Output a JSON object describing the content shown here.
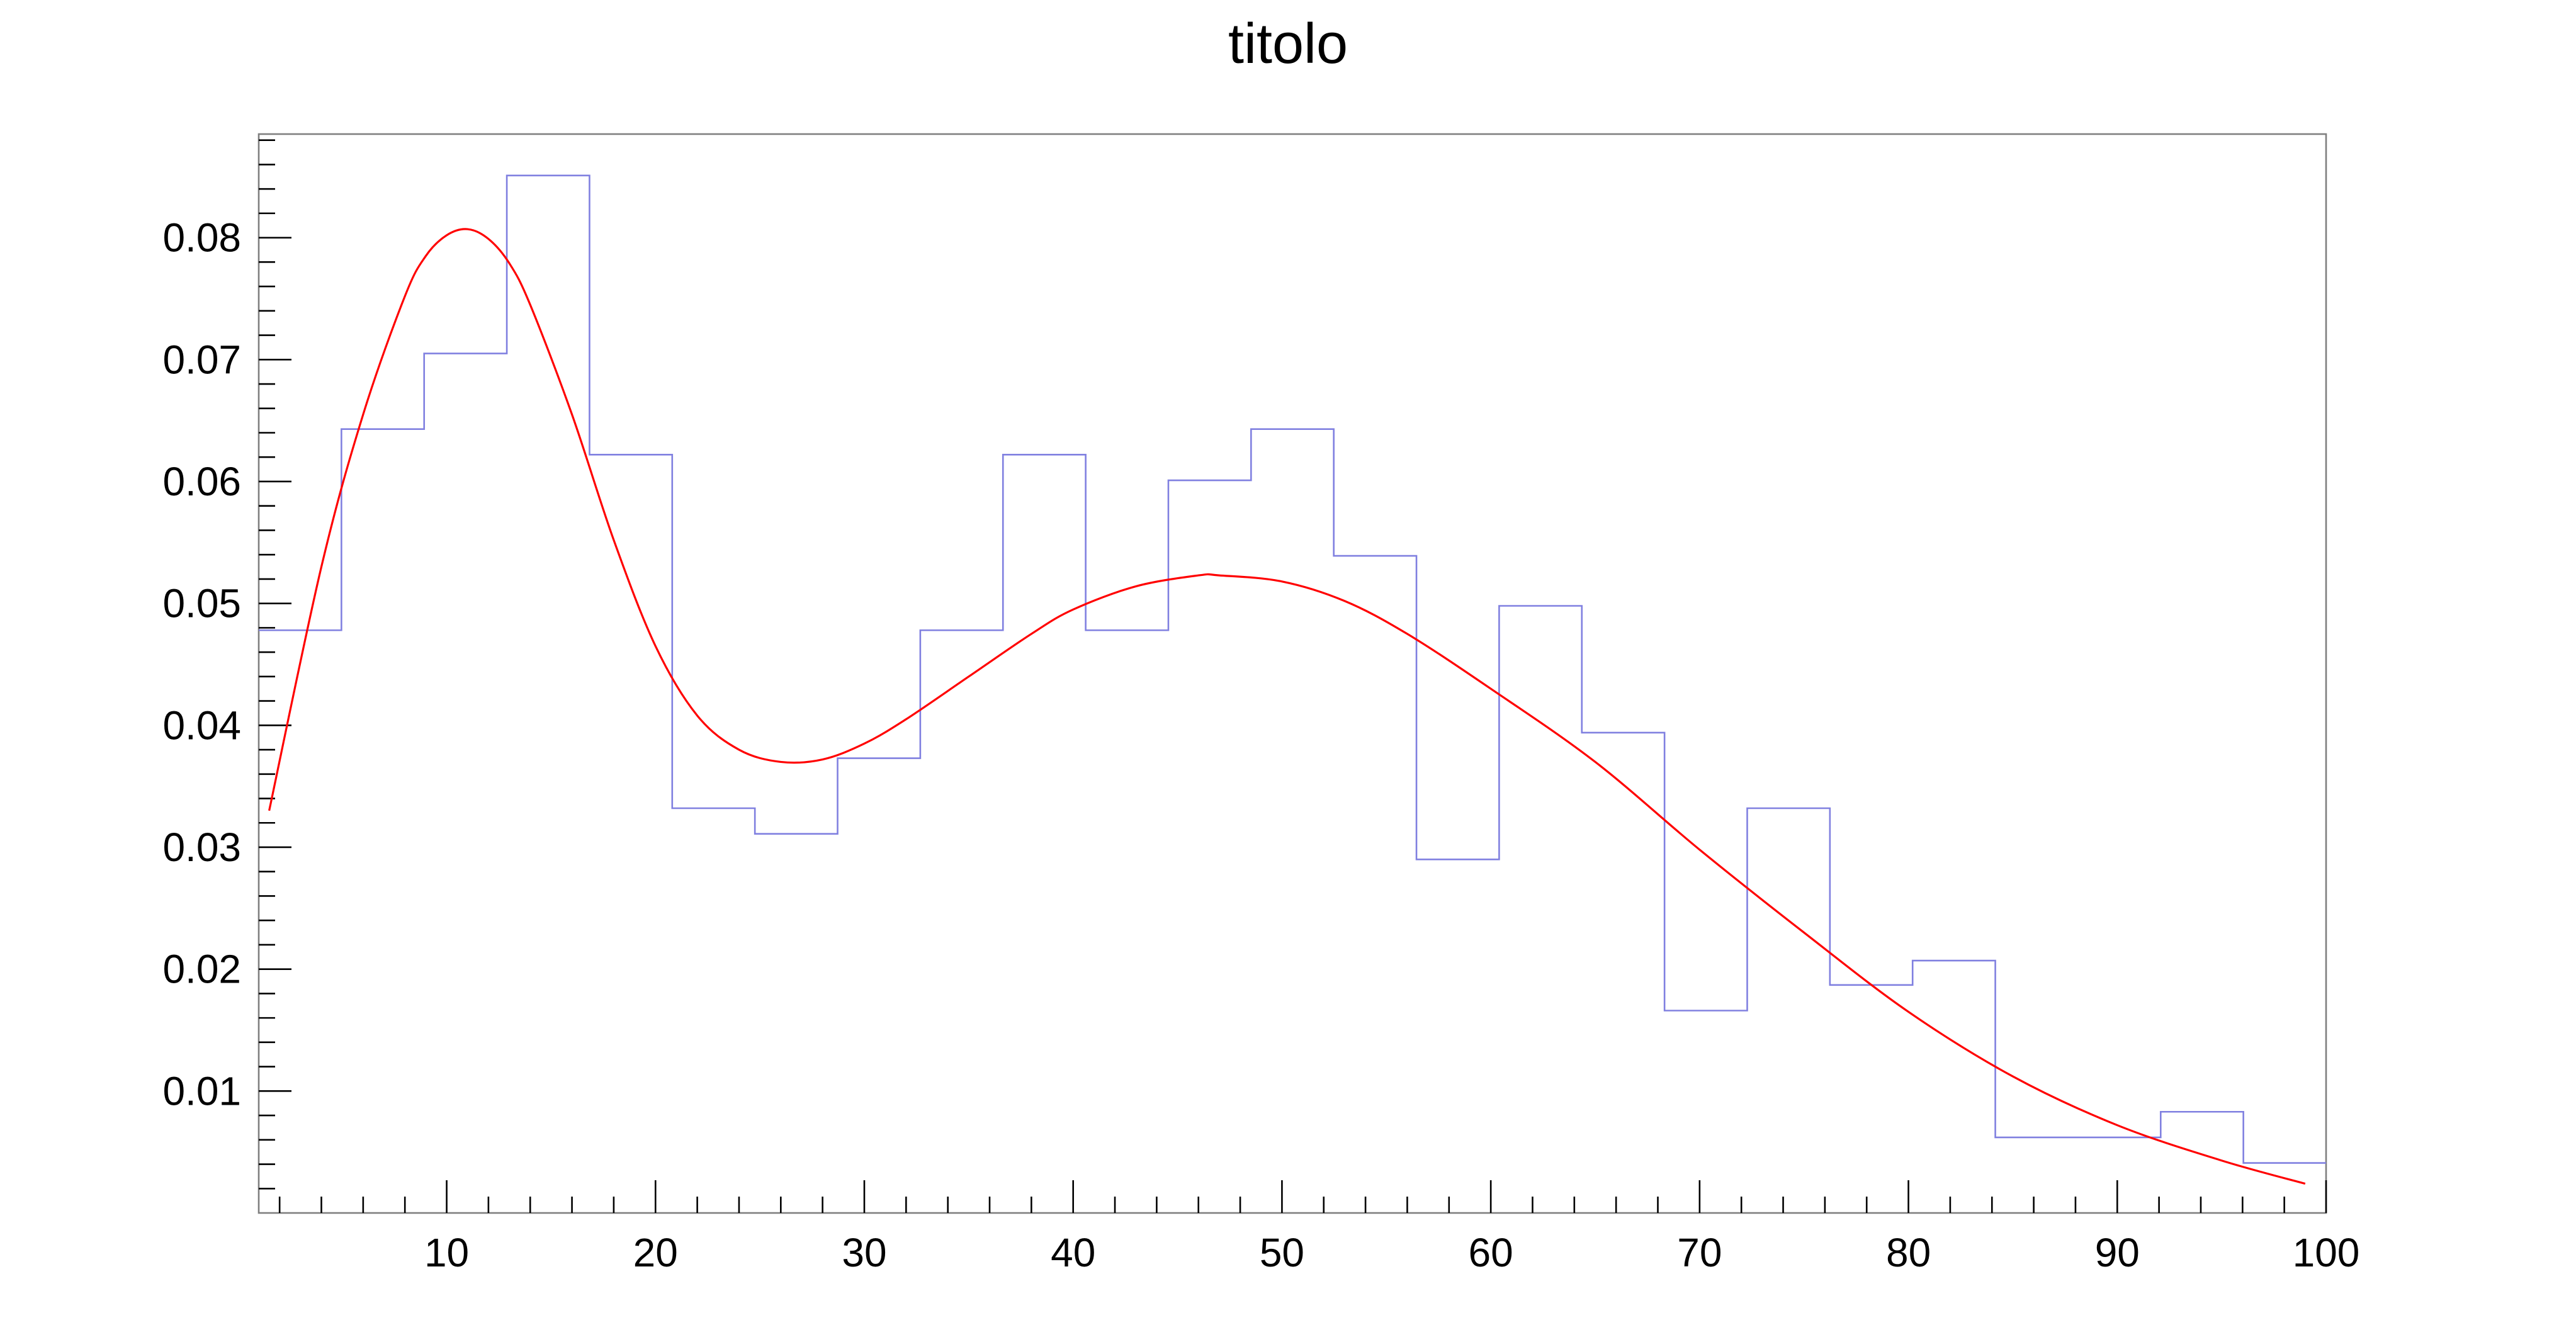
{
  "chart_data": {
    "type": "line",
    "title": "titolo",
    "xlabel": "",
    "ylabel": "",
    "xlim": [
      1,
      100
    ],
    "ylim": [
      0,
      0.0885
    ],
    "grid": false,
    "legend": false,
    "x_ticks": [
      10,
      20,
      30,
      40,
      50,
      60,
      70,
      80,
      90,
      100
    ],
    "y_ticks": [
      0.01,
      0.02,
      0.03,
      0.04,
      0.05,
      0.06,
      0.07,
      0.08
    ],
    "x_tick_labels": [
      "10",
      "20",
      "30",
      "40",
      "50",
      "60",
      "70",
      "80",
      "90",
      "100"
    ],
    "y_tick_labels": [
      "0.01",
      "0.02",
      "0.03",
      "0.04",
      "0.05",
      "0.06",
      "0.07",
      "0.08"
    ],
    "histogram": {
      "color": "#8080e0",
      "bin_edges": [
        1,
        4.96,
        8.92,
        12.88,
        16.84,
        20.8,
        24.76,
        28.72,
        32.68,
        36.64,
        40.6,
        44.56,
        48.52,
        52.48,
        56.44,
        60.4,
        64.36,
        68.32,
        72.28,
        76.24,
        80.2,
        84.16,
        88.12,
        92.08,
        96.04,
        100
      ],
      "values": [
        0.0478,
        0.0643,
        0.0705,
        0.0851,
        0.0622,
        0.0332,
        0.0311,
        0.0373,
        0.0478,
        0.0622,
        0.0478,
        0.0601,
        0.0643,
        0.0539,
        0.029,
        0.0498,
        0.0394,
        0.0166,
        0.0332,
        0.0187,
        0.0207,
        0.0062,
        0.0062,
        0.0083,
        0.0041
      ]
    },
    "fit_curve": {
      "color": "#ff0000",
      "x": [
        1.5,
        4,
        6,
        8,
        9,
        10,
        11,
        12,
        13,
        14,
        16,
        18,
        20,
        22,
        24,
        26,
        28,
        30,
        32,
        35,
        38,
        40,
        43,
        46,
        47,
        50,
        53,
        56,
        60,
        65,
        70,
        75,
        80,
        85,
        90,
        95,
        99
      ],
      "y": [
        0.033,
        0.053,
        0.0655,
        0.0752,
        0.0785,
        0.0802,
        0.0807,
        0.0799,
        0.0779,
        0.0745,
        0.0655,
        0.0552,
        0.0465,
        0.0408,
        0.038,
        0.037,
        0.0372,
        0.0385,
        0.0405,
        0.044,
        0.0475,
        0.0495,
        0.0514,
        0.0523,
        0.0523,
        0.0518,
        0.0502,
        0.0475,
        0.043,
        0.037,
        0.0298,
        0.023,
        0.0165,
        0.0112,
        0.0072,
        0.0043,
        0.0024
      ]
    }
  }
}
